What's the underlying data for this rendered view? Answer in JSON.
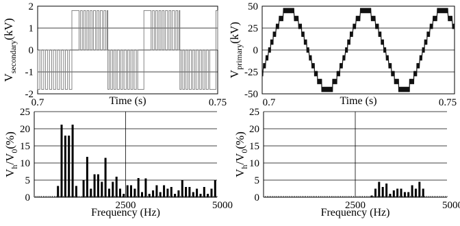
{
  "chart_data": [
    {
      "type": "line",
      "xlabel": "Time (s)",
      "ylabel": "V",
      "ylabel_sub": "secondary",
      "ylabel_unit": "(kV)",
      "xlim": [
        0.7,
        0.75
      ],
      "ylim": [
        -2,
        2
      ],
      "xticks": [
        "0.7",
        "0.75"
      ],
      "yticks": [
        "2",
        "1",
        "0",
        "-1",
        "-2"
      ],
      "grid": "horizontal",
      "series": [
        {
          "polarity_half_cycles": [
            {
              "t_start": 0.7,
              "t_end": 0.7095,
              "level": -1.8,
              "pulses": [
                [
                  0.7006,
                  0.7011
                ],
                [
                  0.7017,
                  0.7022
                ],
                [
                  0.7028,
                  0.7033
                ],
                [
                  0.7039,
                  0.7044
                ],
                [
                  0.705,
                  0.7055
                ],
                [
                  0.7061,
                  0.7066
                ],
                [
                  0.7072,
                  0.7077
                ],
                [
                  0.7083,
                  0.7088
                ]
              ]
            },
            {
              "t_start": 0.7095,
              "t_end": 0.7195,
              "level": 1.8,
              "pulses": [
                [
                  0.7115,
                  0.7119
                ],
                [
                  0.7124,
                  0.7128
                ],
                [
                  0.7133,
                  0.7137
                ],
                [
                  0.7142,
                  0.7146
                ],
                [
                  0.7151,
                  0.7155
                ],
                [
                  0.7161,
                  0.7165
                ],
                [
                  0.717,
                  0.7174
                ],
                [
                  0.718,
                  0.7184
                ],
                [
                  0.7189,
                  0.7193
                ]
              ]
            },
            {
              "t_start": 0.7195,
              "t_end": 0.7295,
              "level": -1.8,
              "pulses": [
                [
                  0.7199,
                  0.7203
                ],
                [
                  0.7208,
                  0.7212
                ],
                [
                  0.7217,
                  0.7221
                ],
                [
                  0.7227,
                  0.7231
                ],
                [
                  0.7236,
                  0.724
                ],
                [
                  0.7246,
                  0.725
                ],
                [
                  0.7255,
                  0.7259
                ],
                [
                  0.7264,
                  0.7268
                ],
                [
                  0.7274,
                  0.7278
                ]
              ]
            },
            {
              "t_start": 0.7295,
              "t_end": 0.7395,
              "level": 1.8,
              "pulses": [
                [
                  0.7315,
                  0.7319
                ],
                [
                  0.7324,
                  0.7328
                ],
                [
                  0.7333,
                  0.7337
                ],
                [
                  0.7342,
                  0.7346
                ],
                [
                  0.7351,
                  0.7355
                ],
                [
                  0.7361,
                  0.7365
                ],
                [
                  0.737,
                  0.7374
                ],
                [
                  0.738,
                  0.7384
                ],
                [
                  0.7389,
                  0.7393
                ]
              ]
            },
            {
              "t_start": 0.7395,
              "t_end": 0.7495,
              "level": -1.8,
              "pulses": [
                [
                  0.7399,
                  0.7403
                ],
                [
                  0.7408,
                  0.7412
                ],
                [
                  0.7417,
                  0.7421
                ],
                [
                  0.7427,
                  0.7431
                ],
                [
                  0.7436,
                  0.744
                ],
                [
                  0.7446,
                  0.745
                ],
                [
                  0.7455,
                  0.7459
                ],
                [
                  0.7464,
                  0.7468
                ],
                [
                  0.7474,
                  0.7478
                ]
              ]
            },
            {
              "t_start": 0.7495,
              "t_end": 0.75,
              "level": 1.8,
              "pulses": []
            }
          ]
        }
      ]
    },
    {
      "type": "line",
      "xlabel": "Time (s)",
      "ylabel": "V",
      "ylabel_sub": "primary",
      "ylabel_unit": "(kV)",
      "xlim": [
        0.7,
        0.75
      ],
      "ylim": [
        -50,
        50
      ],
      "xticks": [
        "0.7",
        "0.75"
      ],
      "yticks": [
        "50",
        "25",
        "0",
        "-25",
        "-50"
      ],
      "grid": "horizontal",
      "series": [
        {
          "amplitude": 45,
          "frequency_hz": 50,
          "phase_deg": -34,
          "steps_per_half_cycle": 5,
          "step_ripple": 6
        }
      ]
    },
    {
      "type": "bar",
      "xlabel": "Frequency (Hz)",
      "ylabel": "V",
      "ylabel_sub": "h",
      "ylabel_mid": "/V",
      "ylabel_sub2": "0",
      "ylabel_unit": "(%)",
      "xlim": [
        0,
        5000
      ],
      "ylim": [
        0,
        25
      ],
      "xticks": [
        "",
        "2500",
        "5000"
      ],
      "yticks": [
        "25",
        "20",
        "15",
        "10",
        "5",
        "0"
      ],
      "grid": "both",
      "x": [
        650,
        750,
        850,
        950,
        1050,
        1150,
        1350,
        1450,
        1550,
        1650,
        1750,
        1850,
        1950,
        2050,
        2150,
        2250,
        2350,
        2450,
        2550,
        2650,
        2750,
        2850,
        2950,
        3050,
        3150,
        3250,
        3350,
        3450,
        3550,
        3650,
        3750,
        3850,
        3950,
        4050,
        4150,
        4250,
        4350,
        4450,
        4550,
        4650,
        4750,
        4850,
        4950
      ],
      "values": [
        3.3,
        21.2,
        18.0,
        18.0,
        21.2,
        3.3,
        5.0,
        11.8,
        2.5,
        6.7,
        6.7,
        4.5,
        11.5,
        2.5,
        4.5,
        6.0,
        2.5,
        1.0,
        3.5,
        3.5,
        2.5,
        5.6,
        1.5,
        5.5,
        1.0,
        2.0,
        3.5,
        1.5,
        3.5,
        2.5,
        3.0,
        1.0,
        2.0,
        5.0,
        3.0,
        3.0,
        1.5,
        2.5,
        1.0,
        3.0,
        1.0,
        2.5,
        5.0
      ]
    },
    {
      "type": "bar",
      "xlabel": "Frequency (Hz)",
      "ylabel": "V",
      "ylabel_sub": "h",
      "ylabel_mid": "/V",
      "ylabel_sub2": "0",
      "ylabel_unit": "(%)",
      "xlim": [
        0,
        5000
      ],
      "ylim": [
        0,
        25
      ],
      "xticks": [
        "",
        "2500",
        "5000"
      ],
      "yticks": [
        "25",
        "20",
        "15",
        "10",
        "5",
        "0"
      ],
      "grid": "both",
      "x": [
        2950,
        3050,
        3150,
        3250,
        3350,
        3450,
        3550,
        3650,
        3750,
        3850,
        3950,
        4050,
        4150,
        4250,
        4350
      ],
      "values": [
        0.5,
        2.5,
        4.5,
        3.0,
        4.0,
        1.0,
        2.0,
        2.5,
        2.5,
        1.5,
        1.5,
        3.5,
        2.5,
        4.5,
        2.5
      ]
    }
  ]
}
